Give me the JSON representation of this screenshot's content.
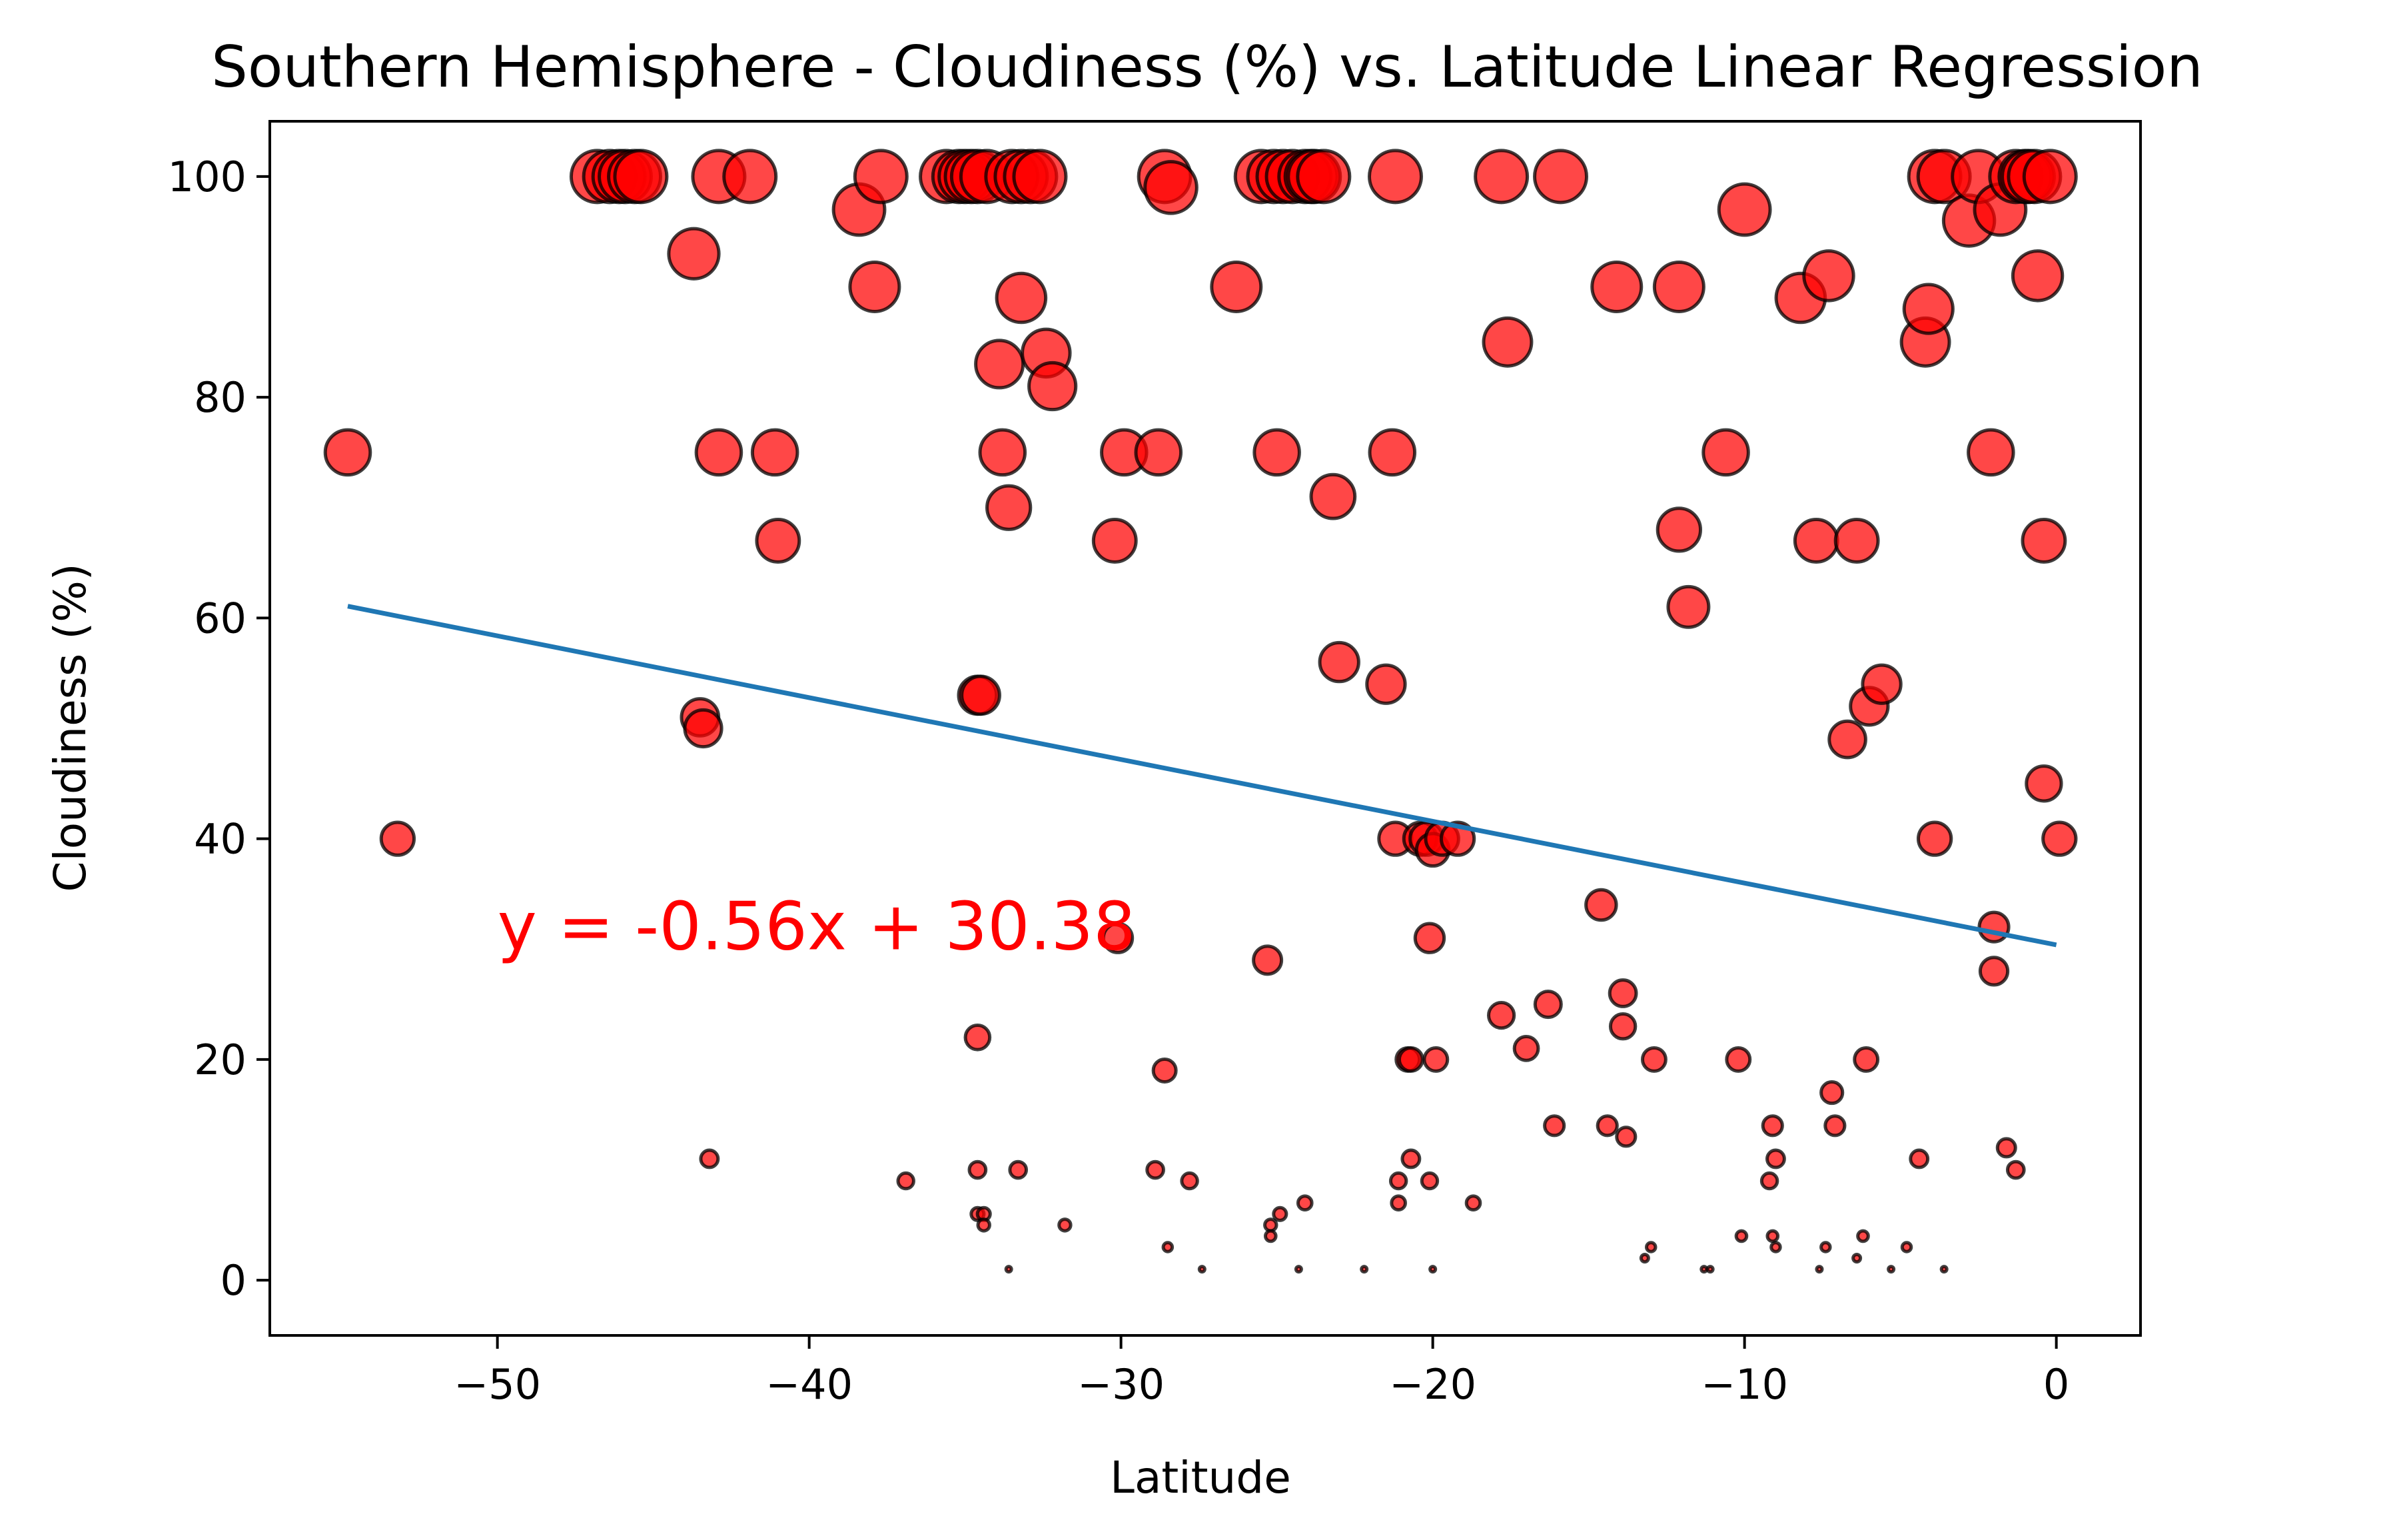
{
  "chart_data": {
    "type": "scatter",
    "title": "Southern Hemisphere - Cloudiness (%) vs. Latitude Linear Regression",
    "xlabel": "Latitude",
    "ylabel": "Cloudiness (%)",
    "xlim": [
      -57.3,
      2.7
    ],
    "ylim": [
      -5,
      105
    ],
    "xticks": [
      -50,
      -40,
      -30,
      -20,
      -10,
      0
    ],
    "yticks": [
      0,
      20,
      40,
      60,
      80,
      100
    ],
    "grid": false,
    "colors": {
      "points": "#ff0000",
      "edges": "#000000",
      "regression": "#1f77b4",
      "annotation": "#ff0000"
    },
    "regression": {
      "slope": -0.56,
      "intercept": 30.38,
      "x_range": [
        -54.8,
        0
      ],
      "equation": "y = -0.56x + 30.38",
      "annotation_at": [
        -50,
        30
      ]
    },
    "points": [
      [
        -54.8,
        75
      ],
      [
        -53.2,
        40
      ],
      [
        -46.8,
        100
      ],
      [
        -46.4,
        100
      ],
      [
        -46.1,
        100
      ],
      [
        -45.9,
        100
      ],
      [
        -45.6,
        100
      ],
      [
        -45.4,
        100
      ],
      [
        -43.7,
        93
      ],
      [
        -43.5,
        51
      ],
      [
        -43.4,
        50
      ],
      [
        -43.2,
        11
      ],
      [
        -42.9,
        100
      ],
      [
        -42.9,
        75
      ],
      [
        -41.9,
        100
      ],
      [
        -41.1,
        75
      ],
      [
        -41.0,
        67
      ],
      [
        -38.4,
        97
      ],
      [
        -37.9,
        90
      ],
      [
        -37.7,
        100
      ],
      [
        -36.9,
        9
      ],
      [
        -35.6,
        100
      ],
      [
        -35.2,
        100
      ],
      [
        -35.0,
        100
      ],
      [
        -34.8,
        100
      ],
      [
        -34.6,
        100
      ],
      [
        -34.6,
        53
      ],
      [
        -34.5,
        53
      ],
      [
        -34.6,
        22
      ],
      [
        -34.6,
        10
      ],
      [
        -34.6,
        6
      ],
      [
        -34.4,
        6
      ],
      [
        -34.4,
        5
      ],
      [
        -34.3,
        100
      ],
      [
        -33.9,
        83
      ],
      [
        -33.8,
        75
      ],
      [
        -33.6,
        70
      ],
      [
        -33.6,
        1
      ],
      [
        -33.5,
        100
      ],
      [
        -33.2,
        89
      ],
      [
        -33.2,
        100
      ],
      [
        -33.3,
        10
      ],
      [
        -32.9,
        100
      ],
      [
        -32.6,
        100
      ],
      [
        -32.4,
        84
      ],
      [
        -32.2,
        81
      ],
      [
        -31.8,
        5
      ],
      [
        -30.2,
        67
      ],
      [
        -30.1,
        31
      ],
      [
        -29.9,
        75
      ],
      [
        -28.9,
        10
      ],
      [
        -28.8,
        75
      ],
      [
        -28.6,
        100
      ],
      [
        -28.6,
        19
      ],
      [
        -28.5,
        3
      ],
      [
        -28.4,
        99
      ],
      [
        -27.8,
        9
      ],
      [
        -27.4,
        1
      ],
      [
        -26.3,
        90
      ],
      [
        -25.5,
        100
      ],
      [
        -25.3,
        29
      ],
      [
        -25.2,
        5
      ],
      [
        -25.2,
        4
      ],
      [
        -25.1,
        100
      ],
      [
        -25.0,
        75
      ],
      [
        -24.8,
        100
      ],
      [
        -24.9,
        6
      ],
      [
        -24.5,
        100
      ],
      [
        -24.3,
        1
      ],
      [
        -24.1,
        7
      ],
      [
        -24.1,
        100
      ],
      [
        -23.9,
        100
      ],
      [
        -23.8,
        100
      ],
      [
        -23.5,
        100
      ],
      [
        -23.2,
        71
      ],
      [
        -23.0,
        56
      ],
      [
        -22.2,
        1
      ],
      [
        -21.5,
        54
      ],
      [
        -21.3,
        75
      ],
      [
        -21.2,
        40
      ],
      [
        -21.2,
        100
      ],
      [
        -21.1,
        9
      ],
      [
        -21.1,
        7
      ],
      [
        -20.8,
        20
      ],
      [
        -20.7,
        20
      ],
      [
        -20.7,
        11
      ],
      [
        -20.4,
        40
      ],
      [
        -20.2,
        40
      ],
      [
        -20.1,
        9
      ],
      [
        -20.1,
        31
      ],
      [
        -20.0,
        39
      ],
      [
        -20.0,
        1
      ],
      [
        -19.9,
        20
      ],
      [
        -19.7,
        40
      ],
      [
        -19.2,
        40
      ],
      [
        -18.7,
        7
      ],
      [
        -17.8,
        24
      ],
      [
        -17.8,
        100
      ],
      [
        -17.6,
        85
      ],
      [
        -17.0,
        21
      ],
      [
        -16.3,
        25
      ],
      [
        -16.1,
        14
      ],
      [
        -15.9,
        100
      ],
      [
        -14.6,
        34
      ],
      [
        -14.4,
        14
      ],
      [
        -14.1,
        90
      ],
      [
        -13.9,
        26
      ],
      [
        -13.9,
        23
      ],
      [
        -13.8,
        13
      ],
      [
        -13.2,
        2
      ],
      [
        -13.0,
        3
      ],
      [
        -12.9,
        20
      ],
      [
        -12.1,
        68
      ],
      [
        -12.1,
        90
      ],
      [
        -11.8,
        61
      ],
      [
        -11.3,
        1
      ],
      [
        -11.1,
        1
      ],
      [
        -10.6,
        75
      ],
      [
        -10.2,
        20
      ],
      [
        -10.1,
        4
      ],
      [
        -10.0,
        97
      ],
      [
        -9.2,
        9
      ],
      [
        -9.1,
        4
      ],
      [
        -9.1,
        14
      ],
      [
        -9.0,
        11
      ],
      [
        -9.0,
        3
      ],
      [
        -8.2,
        89
      ],
      [
        -7.7,
        67
      ],
      [
        -7.6,
        1
      ],
      [
        -7.4,
        3
      ],
      [
        -7.3,
        91
      ],
      [
        -7.2,
        17
      ],
      [
        -7.1,
        14
      ],
      [
        -6.7,
        49
      ],
      [
        -6.4,
        2
      ],
      [
        -6.4,
        67
      ],
      [
        -6.2,
        4
      ],
      [
        -6.1,
        20
      ],
      [
        -6.0,
        52
      ],
      [
        -5.6,
        54
      ],
      [
        -5.3,
        1
      ],
      [
        -4.8,
        3
      ],
      [
        -4.4,
        11
      ],
      [
        -4.2,
        85
      ],
      [
        -4.1,
        88
      ],
      [
        -3.9,
        40
      ],
      [
        -3.9,
        100
      ],
      [
        -3.6,
        100
      ],
      [
        -3.6,
        1
      ],
      [
        -2.8,
        96
      ],
      [
        -2.5,
        100
      ],
      [
        -2.1,
        75
      ],
      [
        -2.0,
        32
      ],
      [
        -2.0,
        28
      ],
      [
        -1.8,
        97
      ],
      [
        -1.6,
        12
      ],
      [
        -1.3,
        10
      ],
      [
        -1.3,
        100
      ],
      [
        -1.0,
        100
      ],
      [
        -0.9,
        100
      ],
      [
        -0.7,
        100
      ],
      [
        -0.6,
        91
      ],
      [
        -0.4,
        67
      ],
      [
        -0.4,
        45
      ],
      [
        -0.2,
        100
      ],
      [
        0.1,
        40
      ]
    ],
    "sizes_basis": "marker area scales with latitude"
  }
}
